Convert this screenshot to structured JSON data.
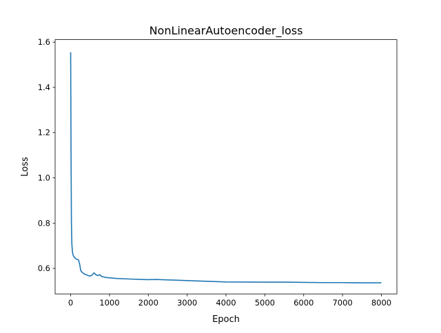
{
  "chart_data": {
    "type": "line",
    "title": "NonLinearAutoencoder_loss",
    "xlabel": "Epoch",
    "ylabel": "Loss",
    "xlim": [
      -400,
      8400
    ],
    "ylim": [
      0.487,
      1.611
    ],
    "xticks": [
      0,
      1000,
      2000,
      3000,
      4000,
      5000,
      6000,
      7000,
      8000
    ],
    "yticks": [
      0.6,
      0.8,
      1.0,
      1.2,
      1.4,
      1.6
    ],
    "xtick_labels": [
      "0",
      "1000",
      "2000",
      "3000",
      "4000",
      "5000",
      "6000",
      "7000",
      "8000"
    ],
    "ytick_labels": [
      "0.6",
      "0.8",
      "1.0",
      "1.2",
      "1.4",
      "1.6"
    ],
    "grid": false,
    "legend": false,
    "series": [
      {
        "color": "#1f77b4",
        "x": [
          0,
          10,
          20,
          30,
          45,
          60,
          80,
          100,
          130,
          160,
          200,
          230,
          260,
          300,
          350,
          400,
          450,
          500,
          550,
          600,
          650,
          700,
          750,
          800,
          850,
          900,
          1000,
          1200,
          1500,
          1800,
          2000,
          2200,
          2500,
          3000,
          3500,
          4000,
          5000,
          5500,
          6000,
          6500,
          7000,
          7500,
          8000
        ],
        "y": [
          1.555,
          1.1,
          0.8,
          0.71,
          0.675,
          0.66,
          0.652,
          0.648,
          0.643,
          0.64,
          0.638,
          0.62,
          0.59,
          0.582,
          0.575,
          0.572,
          0.568,
          0.566,
          0.57,
          0.58,
          0.572,
          0.568,
          0.572,
          0.564,
          0.562,
          0.56,
          0.558,
          0.555,
          0.553,
          0.551,
          0.55,
          0.551,
          0.549,
          0.546,
          0.543,
          0.54,
          0.539,
          0.539,
          0.538,
          0.537,
          0.537,
          0.536,
          0.536
        ]
      }
    ]
  }
}
